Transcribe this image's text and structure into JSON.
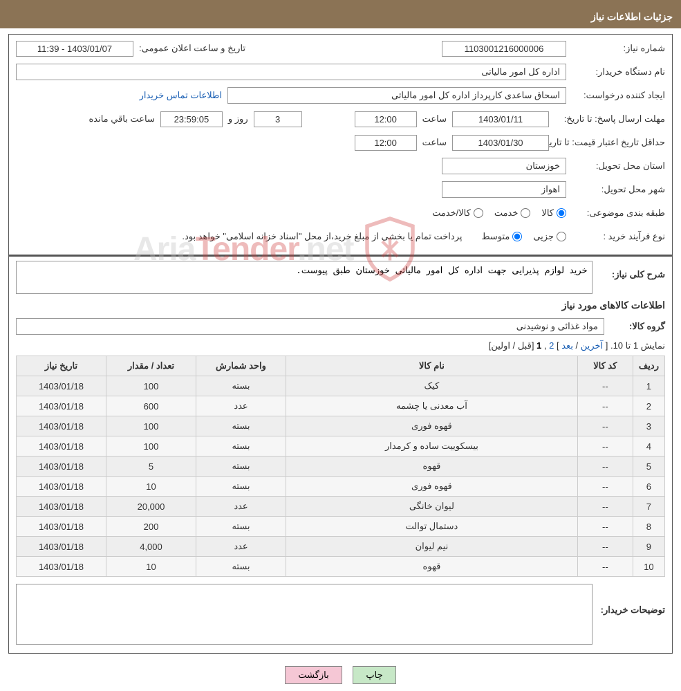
{
  "header": {
    "title": "جزئیات اطلاعات نیاز"
  },
  "form": {
    "need_number": {
      "label": "شماره نیاز:",
      "value": "1103001216000006"
    },
    "announce_date": {
      "label": "تاریخ و ساعت اعلان عمومی:",
      "value": "1403/01/07 - 11:39"
    },
    "buyer_org": {
      "label": "نام دستگاه خریدار:",
      "value": "اداره کل امور مالیاتی"
    },
    "requester": {
      "label": "ایجاد کننده درخواست:",
      "value": "اسحاق ساعدی کارپرداز اداره کل امور مالیاتی"
    },
    "contact_link": "اطلاعات تماس خریدار",
    "deadline": {
      "label": "مهلت ارسال پاسخ: تا تاریخ:",
      "date": "1403/01/11",
      "time_label": "ساعت",
      "time": "12:00",
      "days": "3",
      "days_label": "روز و",
      "hms": "23:59:05",
      "remain_label": "ساعت باقي مانده"
    },
    "validity": {
      "label": "حداقل تاریخ اعتبار قیمت: تا تاریخ:",
      "date": "1403/01/30",
      "time_label": "ساعت",
      "time": "12:00"
    },
    "province": {
      "label": "استان محل تحویل:",
      "value": "خوزستان"
    },
    "city": {
      "label": "شهر محل تحویل:",
      "value": "اهواز"
    },
    "category": {
      "label": "طبقه بندی موضوعی:",
      "opts": [
        "کالا",
        "خدمت",
        "کالا/خدمت"
      ],
      "selected": 0
    },
    "purchase_type": {
      "label": "نوع فرآیند خرید :",
      "opts": [
        "جزیی",
        "متوسط"
      ],
      "selected": 1,
      "note": "پرداخت تمام یا بخشی از مبلغ خرید،از محل \"اسناد خزانه اسلامی\" خواهد بود."
    }
  },
  "description": {
    "label": "شرح کلی نیاز:",
    "value": "خرید لوازم پذیرایی جهت اداره کل امور مالیاتی خوزستان طبق پیوست."
  },
  "goods_section": {
    "title": "اطلاعات کالاهای مورد نیاز",
    "group_label": "گروه کالا:",
    "group_value": "مواد غذائی و نوشیدنی"
  },
  "pagination": {
    "text": "نمایش 1 تا 10. [ ",
    "last": "آخرین",
    "sep1": " / ",
    "next": "بعد",
    "sep2": " ] ",
    "p2": "2",
    "sep3": " ,",
    "current": "1",
    "sep4": " [",
    "prev": "قبل",
    "sep5": " / ",
    "first": "اولین",
    "end": "]"
  },
  "table": {
    "headers": [
      "ردیف",
      "کد کالا",
      "نام کالا",
      "واحد شمارش",
      "تعداد / مقدار",
      "تاریخ نیاز"
    ],
    "col_widths": [
      "40px",
      "80px",
      "auto",
      "130px",
      "130px",
      "130px"
    ],
    "rows": [
      [
        "1",
        "--",
        "کیک",
        "بسته",
        "100",
        "1403/01/18"
      ],
      [
        "2",
        "--",
        "آب معدنی یا چشمه",
        "عدد",
        "600",
        "1403/01/18"
      ],
      [
        "3",
        "--",
        "قهوه فوری",
        "بسته",
        "100",
        "1403/01/18"
      ],
      [
        "4",
        "--",
        "بیسکوییت ساده و کرمدار",
        "بسته",
        "100",
        "1403/01/18"
      ],
      [
        "5",
        "--",
        "قهوه",
        "بسته",
        "5",
        "1403/01/18"
      ],
      [
        "6",
        "--",
        "قهوه فوری",
        "بسته",
        "10",
        "1403/01/18"
      ],
      [
        "7",
        "--",
        "لیوان خانگی",
        "عدد",
        "20,000",
        "1403/01/18"
      ],
      [
        "8",
        "--",
        "دستمال توالت",
        "بسته",
        "200",
        "1403/01/18"
      ],
      [
        "9",
        "--",
        "نیم لیوان",
        "عدد",
        "4,000",
        "1403/01/18"
      ],
      [
        "10",
        "--",
        "قهوه",
        "بسته",
        "10",
        "1403/01/18"
      ]
    ]
  },
  "buyer_notes": {
    "label": "توضیحات خریدار:",
    "value": ""
  },
  "buttons": {
    "print": "چاپ",
    "back": "بازگشت"
  },
  "watermark": {
    "text1": "Aria",
    "text2": "Tender",
    "text3": ".net"
  },
  "colors": {
    "header_bg": "#8b7355",
    "link": "#1a5fb4",
    "btn_print_bg": "#c7e8c7",
    "btn_back_bg": "#f5c7d5"
  }
}
